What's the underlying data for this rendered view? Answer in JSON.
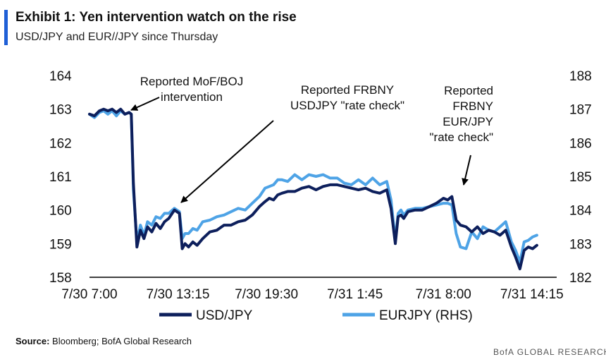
{
  "header": {
    "title": "Exhibit 1: Yen intervention watch on the rise",
    "subtitle": "USD/JPY and EUR//JPY since Thursday"
  },
  "source": {
    "label": "Source:",
    "text": "Bloomberg; BofA Global Research"
  },
  "footer": {
    "text": "BofA GLOBAL RESEARCH"
  },
  "colors": {
    "accent": "#1f5fd6",
    "usdjpy": "#0d1f5c",
    "eurjpy": "#4ea3e6",
    "axis": "#000000",
    "arrow": "#000000"
  },
  "chart_data": {
    "type": "line",
    "title": "Exhibit 1: Yen intervention watch on the rise",
    "x_tick_labels": [
      "7/30 7:00",
      "7/30 13:15",
      "7/30 19:30",
      "7/31 1:45",
      "7/31 8:00",
      "7/31 14:15"
    ],
    "x_ticks": [
      0,
      6.25,
      12.5,
      18.75,
      25,
      31.25
    ],
    "x_unit": "hours since 7/30 7:00",
    "xlim": [
      0,
      33
    ],
    "y_left": {
      "lim": [
        158,
        164
      ],
      "ticks": [
        "158",
        "159",
        "160",
        "161",
        "162",
        "163",
        "164"
      ]
    },
    "y_right": {
      "lim": [
        182,
        188
      ],
      "ticks": [
        "182",
        "183",
        "184",
        "185",
        "186",
        "187",
        "188"
      ]
    },
    "grid": false,
    "legend_position": "bottom",
    "series": [
      {
        "name": "USD/JPY",
        "axis": "left",
        "x": [
          0,
          0.35,
          0.7,
          1.0,
          1.3,
          1.6,
          1.9,
          2.2,
          2.5,
          2.8,
          2.95,
          3.1,
          3.35,
          3.6,
          3.85,
          4.1,
          4.4,
          4.7,
          5.0,
          5.3,
          5.6,
          6.0,
          6.35,
          6.55,
          6.75,
          7.0,
          7.3,
          7.6,
          8.0,
          8.5,
          9.0,
          9.5,
          10.0,
          10.5,
          11.0,
          11.5,
          12.0,
          12.4,
          12.7,
          13.0,
          13.3,
          13.6,
          14.0,
          14.5,
          15.0,
          15.5,
          16.0,
          16.5,
          17.0,
          17.5,
          18.0,
          18.5,
          19.0,
          19.5,
          20.0,
          20.5,
          21.0,
          21.3,
          21.6,
          21.8,
          22.0,
          22.2,
          22.5,
          23.0,
          23.5,
          24.0,
          24.5,
          25.0,
          25.3,
          25.6,
          25.9,
          26.2,
          26.6,
          27.0,
          27.4,
          27.8,
          28.2,
          28.6,
          29.0,
          29.4,
          29.8,
          30.1,
          30.4,
          30.7,
          31.0,
          31.3,
          31.6
        ],
        "y": [
          162.85,
          162.8,
          162.95,
          163.0,
          162.95,
          163.0,
          162.9,
          163.0,
          162.85,
          162.9,
          162.85,
          160.8,
          158.9,
          159.4,
          159.15,
          159.5,
          159.35,
          159.6,
          159.45,
          159.65,
          159.75,
          160.0,
          159.9,
          158.85,
          159.0,
          158.9,
          159.05,
          158.95,
          159.15,
          159.35,
          159.4,
          159.55,
          159.55,
          159.65,
          159.7,
          159.85,
          160.1,
          160.25,
          160.35,
          160.3,
          160.45,
          160.5,
          160.55,
          160.55,
          160.65,
          160.7,
          160.6,
          160.7,
          160.75,
          160.75,
          160.7,
          160.65,
          160.6,
          160.65,
          160.55,
          160.5,
          160.6,
          160.05,
          159.0,
          159.8,
          159.85,
          159.75,
          159.95,
          160.0,
          160.0,
          160.1,
          160.2,
          160.35,
          160.3,
          160.4,
          159.7,
          159.55,
          159.5,
          159.35,
          159.5,
          159.3,
          159.4,
          159.35,
          159.25,
          159.4,
          158.9,
          158.6,
          158.25,
          158.8,
          158.9,
          158.85,
          158.95
        ]
      },
      {
        "name": "EURJPY (RHS)",
        "axis": "right",
        "x": [
          0,
          0.35,
          0.7,
          1.0,
          1.3,
          1.6,
          1.9,
          2.2,
          2.5,
          2.8,
          2.95,
          3.1,
          3.35,
          3.6,
          3.85,
          4.1,
          4.4,
          4.7,
          5.0,
          5.3,
          5.6,
          6.0,
          6.35,
          6.55,
          6.75,
          7.0,
          7.3,
          7.6,
          8.0,
          8.5,
          9.0,
          9.5,
          10.0,
          10.5,
          11.0,
          11.5,
          12.0,
          12.4,
          12.7,
          13.0,
          13.3,
          13.6,
          14.0,
          14.5,
          15.0,
          15.5,
          16.0,
          16.5,
          17.0,
          17.5,
          18.0,
          18.5,
          19.0,
          19.5,
          20.0,
          20.5,
          21.0,
          21.3,
          21.6,
          21.8,
          22.0,
          22.2,
          22.5,
          23.0,
          23.5,
          24.0,
          24.5,
          25.0,
          25.3,
          25.6,
          25.9,
          26.2,
          26.6,
          27.0,
          27.4,
          27.8,
          28.2,
          28.6,
          29.0,
          29.4,
          29.8,
          30.1,
          30.4,
          30.7,
          31.0,
          31.3,
          31.6
        ],
        "y": [
          186.85,
          186.75,
          186.9,
          186.95,
          186.85,
          186.95,
          186.8,
          186.95,
          186.85,
          186.9,
          186.85,
          184.6,
          183.05,
          183.55,
          183.25,
          183.65,
          183.55,
          183.8,
          183.75,
          183.9,
          183.9,
          184.05,
          183.95,
          183.15,
          183.3,
          183.3,
          183.45,
          183.4,
          183.65,
          183.7,
          183.8,
          183.85,
          183.95,
          184.05,
          184.0,
          184.2,
          184.4,
          184.65,
          184.7,
          184.75,
          184.9,
          184.9,
          184.85,
          185.05,
          184.9,
          185.05,
          185.0,
          185.05,
          184.95,
          184.95,
          184.8,
          184.75,
          184.9,
          184.75,
          184.95,
          184.75,
          184.85,
          184.3,
          183.1,
          183.9,
          184.0,
          183.85,
          184.0,
          184.05,
          184.05,
          184.1,
          184.15,
          184.2,
          184.2,
          184.15,
          183.3,
          182.9,
          182.85,
          183.35,
          183.15,
          183.5,
          183.4,
          183.35,
          183.5,
          183.65,
          183.05,
          182.8,
          182.45,
          183.05,
          183.1,
          183.2,
          183.25
        ]
      }
    ],
    "annotations": [
      {
        "lines": [
          "Reported MoF/BOJ",
          "intervention"
        ],
        "x": 2.95,
        "y_left": 162.95
      },
      {
        "lines": [
          "Reported FRBNY",
          "USDJPY \"rate check\""
        ],
        "x": 6.3,
        "y_left": 160.05
      },
      {
        "lines": [
          "Reported",
          "FRBNY",
          "EUR/JPY",
          "\"rate check\""
        ],
        "x": 25.0,
        "y_left": 160.45
      }
    ]
  }
}
